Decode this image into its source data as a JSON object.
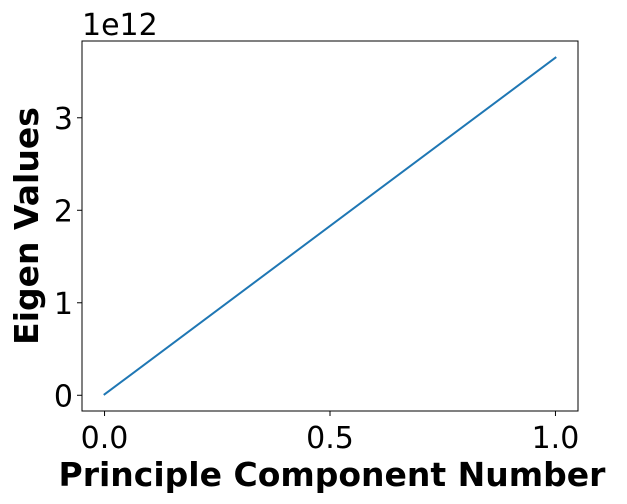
{
  "chart_data": {
    "type": "line",
    "title": "",
    "xlabel": "Principle Component Number",
    "ylabel": "Eigen Values",
    "y_offset_text": "1e12",
    "x": [
      0.0,
      1.0
    ],
    "series": [
      {
        "values": [
          0.01,
          3.65
        ],
        "color": "#1f77b4"
      }
    ],
    "xlim": [
      -0.05,
      1.05
    ],
    "ylim": [
      -0.17,
      3.83
    ],
    "x_ticks": [
      0.0,
      0.5,
      1.0
    ],
    "x_tick_labels": [
      "0.0",
      "0.5",
      "1.0"
    ],
    "y_ticks": [
      0,
      1,
      2,
      3
    ],
    "y_tick_labels": [
      "0",
      "1",
      "2",
      "3"
    ],
    "grid": false,
    "legend": "none"
  }
}
